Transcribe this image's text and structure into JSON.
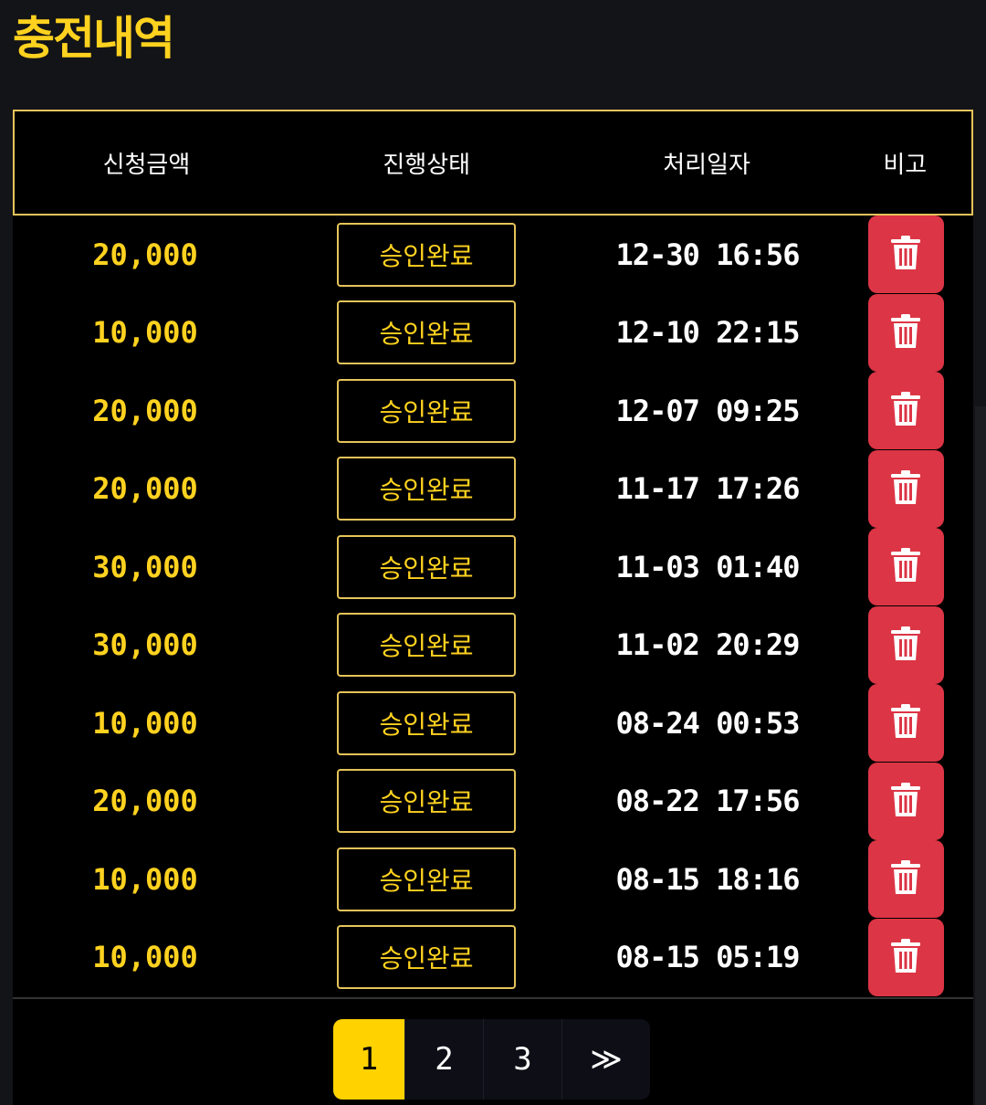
{
  "page": {
    "title": "충전내역"
  },
  "table": {
    "headers": [
      "신청금액",
      "진행상태",
      "처리일자",
      "비고"
    ],
    "rows": [
      {
        "amount": "20,000",
        "status": "승인완료",
        "date": "12-30 16:56"
      },
      {
        "amount": "10,000",
        "status": "승인완료",
        "date": "12-10 22:15"
      },
      {
        "amount": "20,000",
        "status": "승인완료",
        "date": "12-07 09:25"
      },
      {
        "amount": "20,000",
        "status": "승인완료",
        "date": "11-17 17:26"
      },
      {
        "amount": "30,000",
        "status": "승인완료",
        "date": "11-03 01:40"
      },
      {
        "amount": "30,000",
        "status": "승인완료",
        "date": "11-02 20:29"
      },
      {
        "amount": "10,000",
        "status": "승인완료",
        "date": "08-24 00:53"
      },
      {
        "amount": "20,000",
        "status": "승인완료",
        "date": "08-22 17:56"
      },
      {
        "amount": "10,000",
        "status": "승인완료",
        "date": "08-15 18:16"
      },
      {
        "amount": "10,000",
        "status": "승인완료",
        "date": "08-15 05:19"
      }
    ]
  },
  "pagination": {
    "pages": [
      "1",
      "2",
      "3"
    ],
    "current": "1",
    "next_label": "≫"
  },
  "colors": {
    "accent": "#ffd21f",
    "delete": "#dc3545",
    "background": "#131417"
  },
  "icons": {
    "delete": "trash-icon"
  }
}
